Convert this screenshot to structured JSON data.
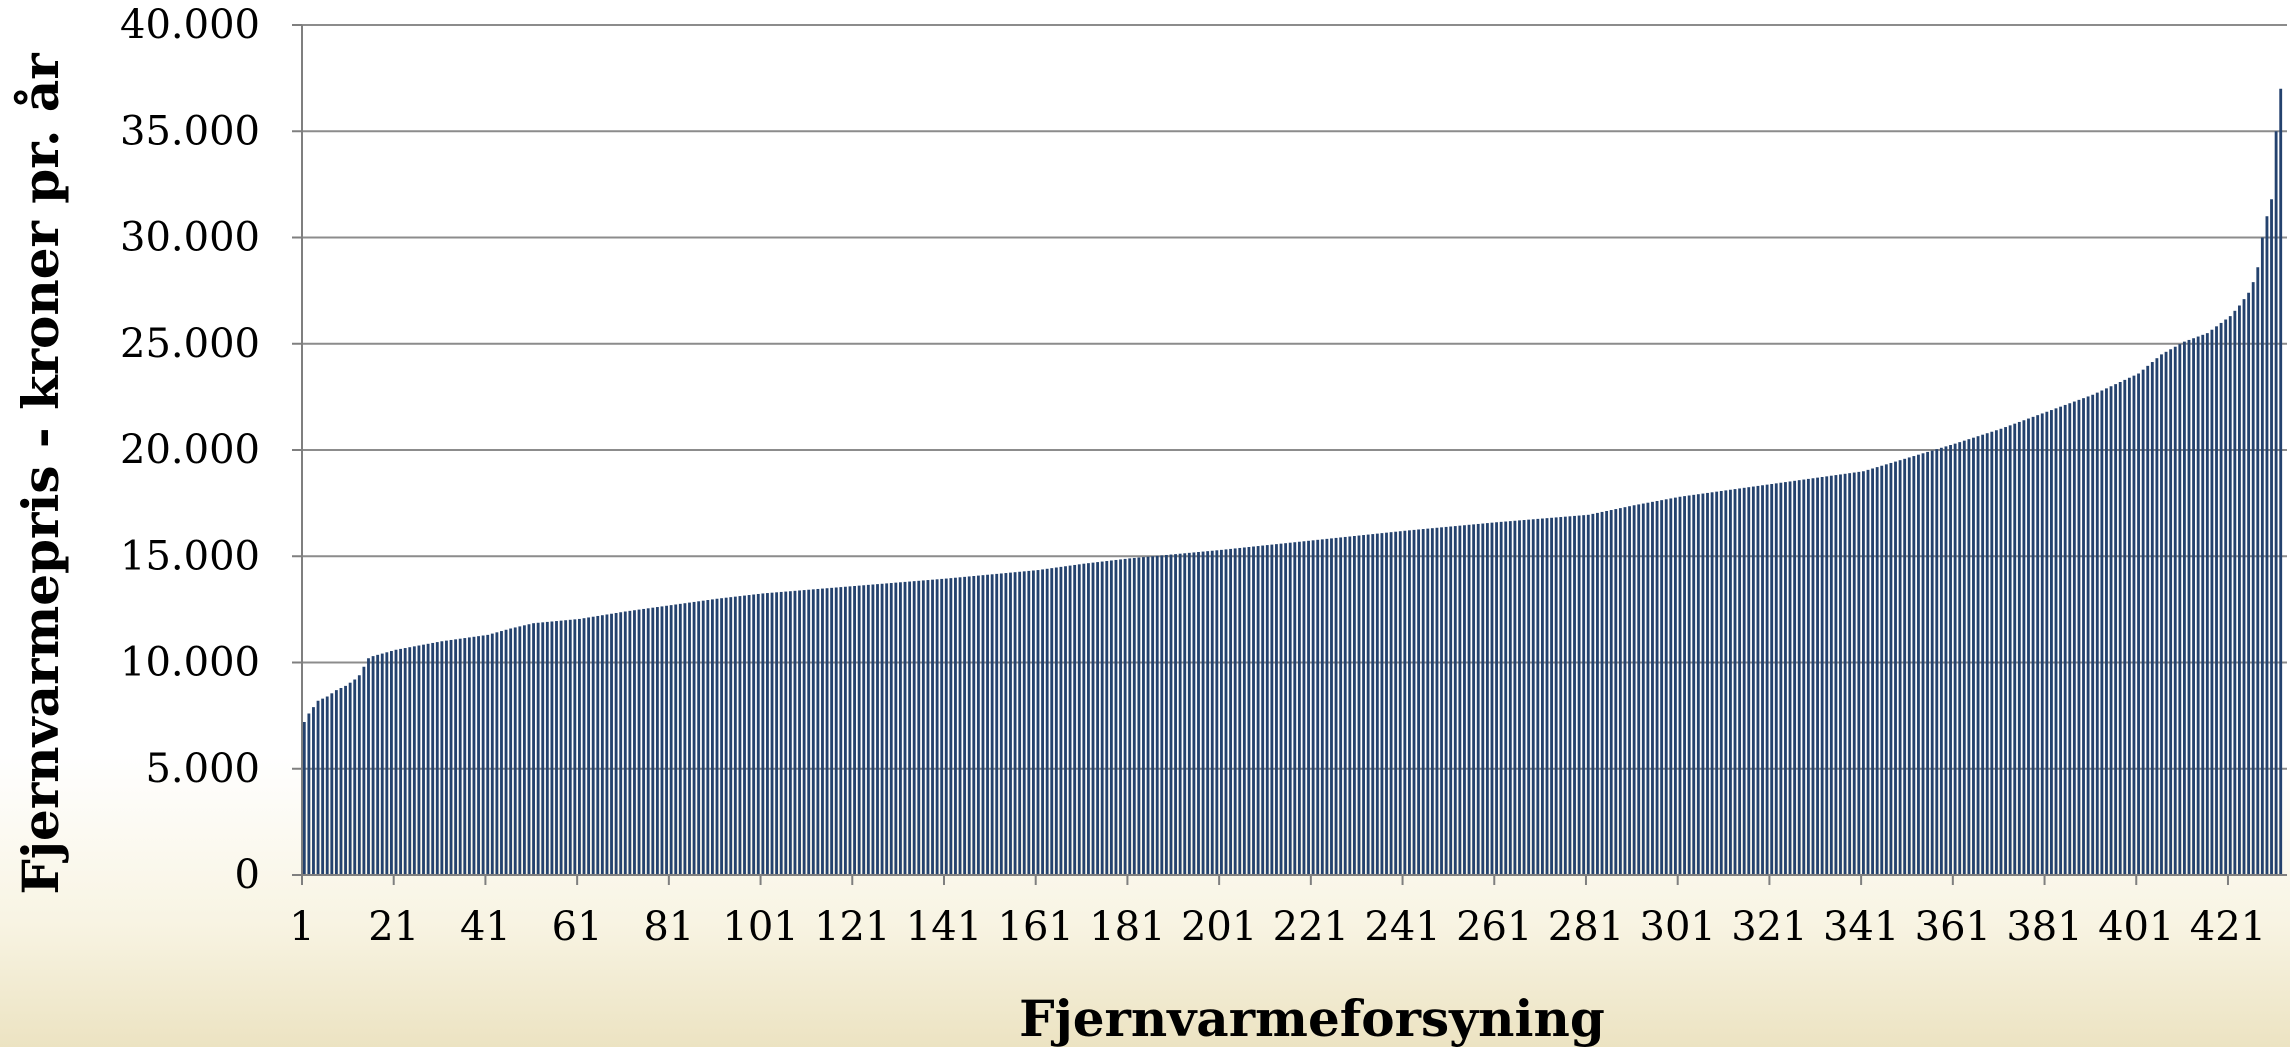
{
  "chart_data": {
    "type": "bar",
    "title": "",
    "xlabel": "Fjernvarmeforsyning",
    "ylabel": "Fjernvarmepris - kroner pr. år",
    "ylim": [
      0,
      40000
    ],
    "yticks": [
      0,
      5000,
      10000,
      15000,
      20000,
      25000,
      30000,
      35000,
      40000
    ],
    "ytick_labels": [
      "0",
      "5.000",
      "10.000",
      "15.000",
      "20.000",
      "25.000",
      "30.000",
      "35.000",
      "40.000"
    ],
    "xtick_labels": [
      "1",
      "21",
      "41",
      "61",
      "81",
      "101",
      "121",
      "141",
      "161",
      "181",
      "201",
      "221",
      "241",
      "261",
      "281",
      "301",
      "321",
      "341",
      "361",
      "381",
      "401",
      "421"
    ],
    "grid": true,
    "legend": "none",
    "bar_color": "#24426e",
    "n_bars": 432,
    "sorted": "ascending",
    "value_profile": {
      "x": [
        1,
        2,
        3,
        4,
        5,
        6,
        8,
        10,
        12,
        13,
        14,
        15,
        16,
        21,
        31,
        41,
        46,
        51,
        61,
        71,
        81,
        91,
        101,
        121,
        141,
        161,
        171,
        181,
        191,
        201,
        221,
        241,
        261,
        281,
        291,
        301,
        321,
        341,
        361,
        371,
        381,
        391,
        401,
        406,
        411,
        416,
        421,
        423,
        425,
        426,
        427,
        428,
        429,
        430,
        431,
        432
      ],
      "y": [
        7200,
        7600,
        7900,
        8200,
        8300,
        8400,
        8700,
        8900,
        9200,
        9400,
        9800,
        10200,
        10300,
        10600,
        11000,
        11300,
        11600,
        11850,
        12050,
        12400,
        12700,
        13000,
        13250,
        13600,
        13950,
        14350,
        14650,
        14900,
        15100,
        15300,
        15750,
        16200,
        16600,
        16950,
        17400,
        17800,
        18400,
        19000,
        20300,
        21000,
        21800,
        22600,
        23600,
        24500,
        25100,
        25500,
        26300,
        26800,
        27400,
        27900,
        28600,
        30000,
        31000,
        31800,
        35000,
        37000
      ]
    }
  }
}
